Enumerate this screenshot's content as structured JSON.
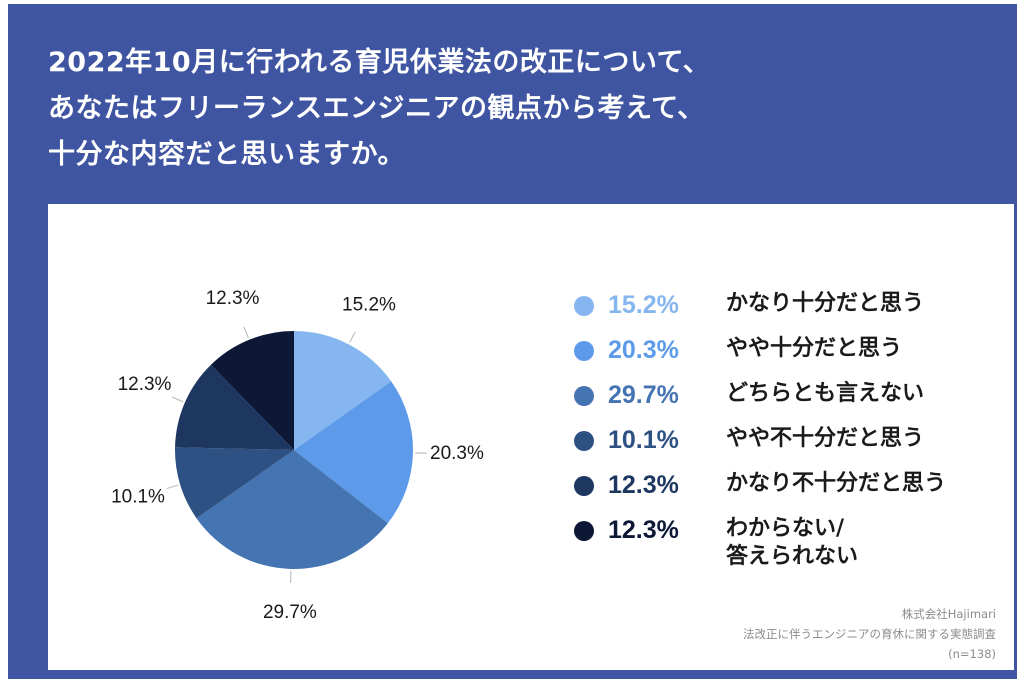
{
  "title_lines": [
    "2022年10月に行われる育児休業法の改正について、",
    "あなたはフリーランスエンジニアの観点から考えて、",
    "十分な内容だと思いますか。"
  ],
  "chart_data": {
    "type": "pie",
    "title": "",
    "slices": [
      {
        "label": "かなり十分だと思う",
        "value": 15.2,
        "value_label": "15.2%",
        "color": "#86b6ef"
      },
      {
        "label": "やや十分だと思う",
        "value": 20.3,
        "value_label": "20.3%",
        "color": "#5d9bea"
      },
      {
        "label": "どちらとも言えない",
        "value": 29.7,
        "value_label": "29.7%",
        "color": "#4574b3"
      },
      {
        "label": "やや不十分だと思う",
        "value": 10.1,
        "value_label": "10.1%",
        "color": "#2e5184"
      },
      {
        "label": "かなり不十分だと思う",
        "value": 12.3,
        "value_label": "12.3%",
        "color": "#1e3760"
      },
      {
        "label": "わからない/\n答えられない",
        "value": 12.3,
        "value_label": "12.3%",
        "color": "#0c1836"
      }
    ],
    "legend_position": "right"
  },
  "colors": {
    "banner": "#3f55a2",
    "card": "#ffffff"
  },
  "source": {
    "company": "株式会社Hajimari",
    "survey": "法改正に伴うエンジニアの育休に関する実態調査",
    "sample": "(n=138)"
  }
}
